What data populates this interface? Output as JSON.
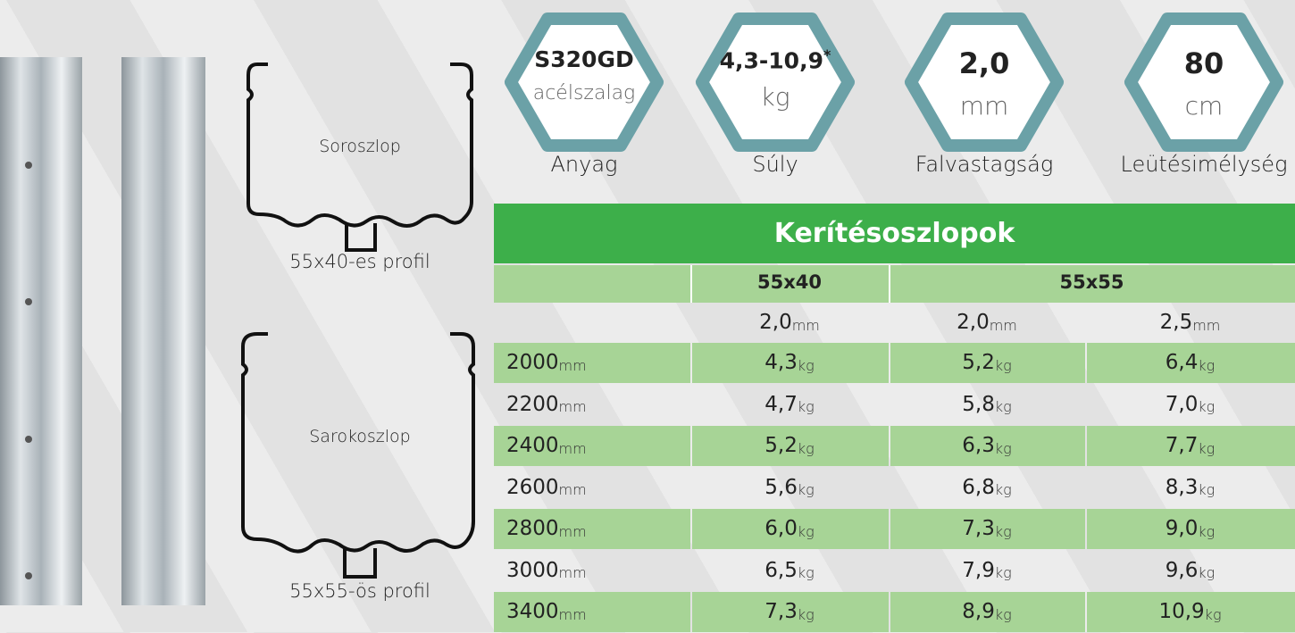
{
  "specs": [
    {
      "value": "S320GD",
      "unit": "acélszalag",
      "label": "Anyag"
    },
    {
      "value": "4,3-10,9",
      "mark": "*",
      "unit": "kg",
      "label": "Súly"
    },
    {
      "value": "2,0",
      "unit": "mm",
      "label": "Falvastagság"
    },
    {
      "value": "80",
      "unit": "cm",
      "label": "Leütésimélység"
    }
  ],
  "profiles": [
    {
      "name": "Soroszlop",
      "caption": "55x40-es profil"
    },
    {
      "name": "Sarokoszlop",
      "caption": "55x55-ös profil"
    }
  ],
  "table": {
    "title": "Kerítésoszlopok",
    "groups": [
      "55x40",
      "55x55"
    ],
    "thickness": [
      {
        "v": "2,0",
        "u": "mm"
      },
      {
        "v": "2,0",
        "u": "mm"
      },
      {
        "v": "2,5",
        "u": "mm"
      }
    ],
    "rows": [
      [
        {
          "v": "2000",
          "u": "mm"
        },
        {
          "v": "4,3",
          "u": "kg"
        },
        {
          "v": "5,2",
          "u": "kg"
        },
        {
          "v": "6,4",
          "u": "kg"
        }
      ],
      [
        {
          "v": "2200",
          "u": "mm"
        },
        {
          "v": "4,7",
          "u": "kg"
        },
        {
          "v": "5,8",
          "u": "kg"
        },
        {
          "v": "7,0",
          "u": "kg"
        }
      ],
      [
        {
          "v": "2400",
          "u": "mm"
        },
        {
          "v": "5,2",
          "u": "kg"
        },
        {
          "v": "6,3",
          "u": "kg"
        },
        {
          "v": "7,7",
          "u": "kg"
        }
      ],
      [
        {
          "v": "2600",
          "u": "mm"
        },
        {
          "v": "5,6",
          "u": "kg"
        },
        {
          "v": "6,8",
          "u": "kg"
        },
        {
          "v": "8,3",
          "u": "kg"
        }
      ],
      [
        {
          "v": "2800",
          "u": "mm"
        },
        {
          "v": "6,0",
          "u": "kg"
        },
        {
          "v": "7,3",
          "u": "kg"
        },
        {
          "v": "9,0",
          "u": "kg"
        }
      ],
      [
        {
          "v": "3000",
          "u": "mm"
        },
        {
          "v": "6,5",
          "u": "kg"
        },
        {
          "v": "7,9",
          "u": "kg"
        },
        {
          "v": "9,6",
          "u": "kg"
        }
      ],
      [
        {
          "v": "3400",
          "u": "mm"
        },
        {
          "v": "7,3",
          "u": "kg"
        },
        {
          "v": "8,9",
          "u": "kg"
        },
        {
          "v": "10,9",
          "u": "kg"
        }
      ]
    ]
  }
}
